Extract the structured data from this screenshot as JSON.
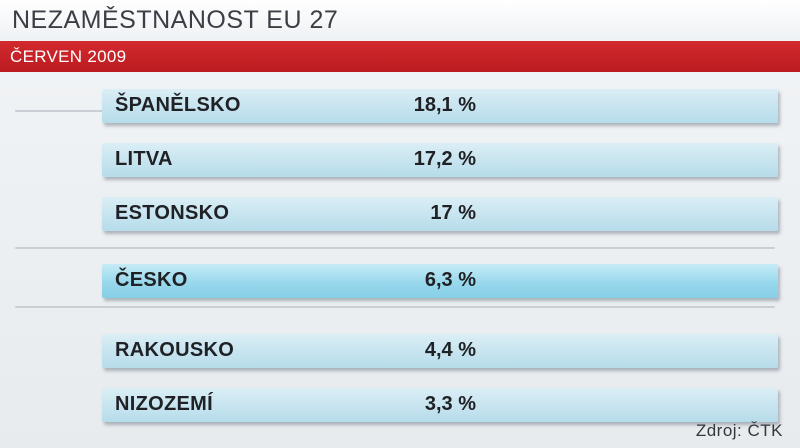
{
  "header": {
    "title": "NEZAMĚSTNANOST EU 27",
    "subtitle": "ČERVEN 2009"
  },
  "rows": [
    {
      "country": "ŠPANĚLSKO",
      "value": "18,1 %",
      "highlighted": false
    },
    {
      "country": "LITVA",
      "value": "17,2 %",
      "highlighted": false
    },
    {
      "country": "ESTONSKO",
      "value": "17 %",
      "highlighted": false
    },
    {
      "country": "ČESKO",
      "value": "6,3 %",
      "highlighted": true
    },
    {
      "country": "RAKOUSKO",
      "value": "4,4 %",
      "highlighted": false
    },
    {
      "country": "NIZOZEMÍ",
      "value": "3,3 %",
      "highlighted": false
    }
  ],
  "footer": {
    "source": "Zdroj: ČTK"
  },
  "colors": {
    "banner_red": "#c62126",
    "row_blue": "#c4e3ef",
    "row_highlight": "#98d8ec"
  }
}
